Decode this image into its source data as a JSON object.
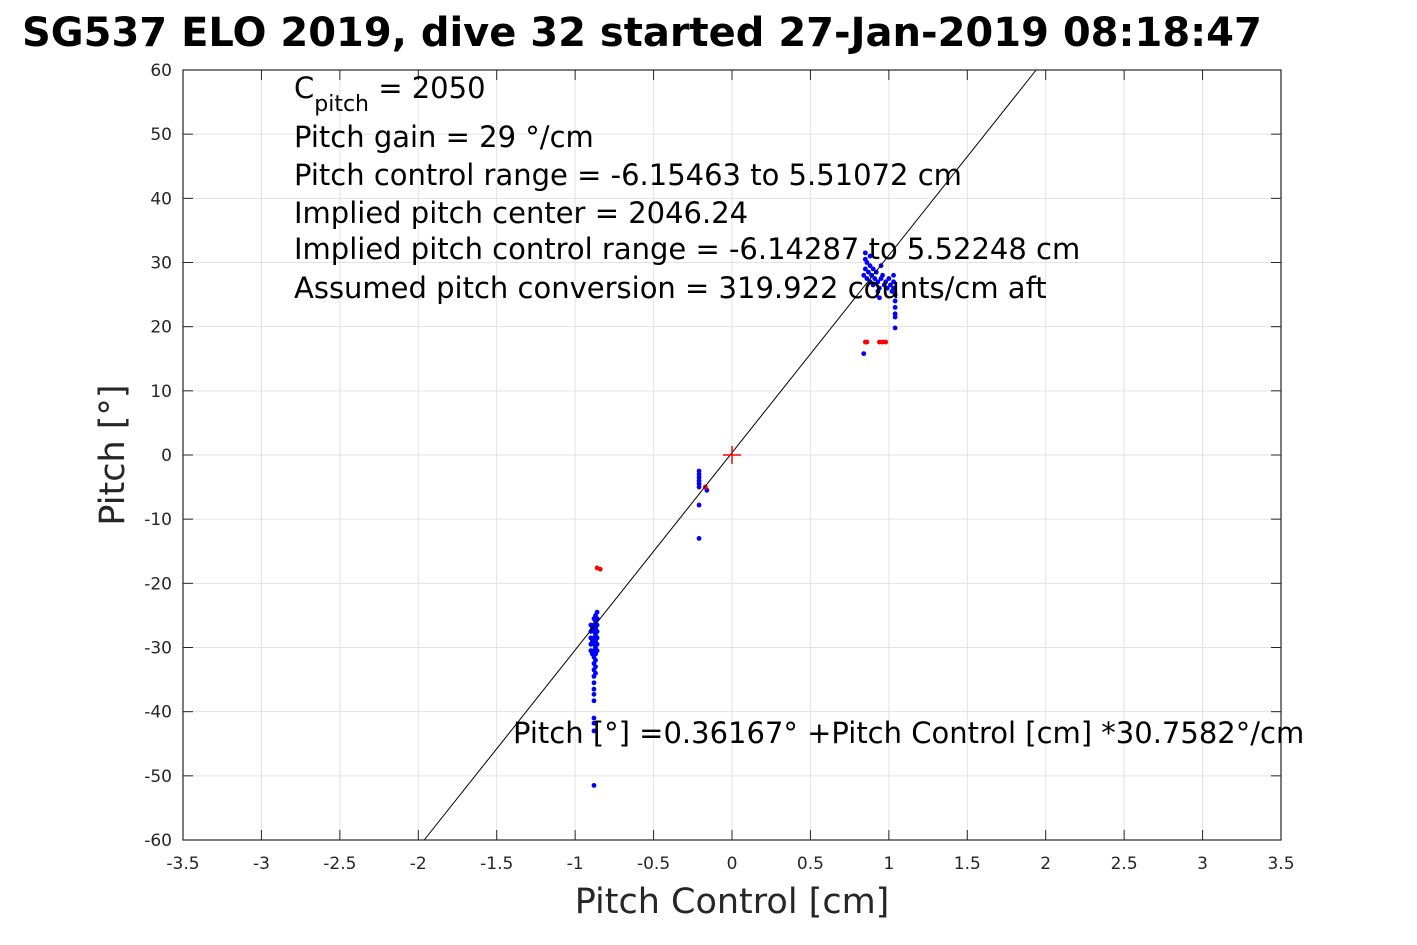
{
  "title": "SG537 ELO 2019, dive 32 started 27-Jan-2019 08:18:47",
  "annotations": {
    "cpitch_symbol": "C",
    "cpitch_subscript": "pitch",
    "cpitch_value": " = 2050",
    "lines": [
      "Pitch gain = 29 °/cm",
      "Pitch control range = -6.15463 to 5.51072 cm",
      "Implied pitch center = 2046.24",
      "Implied pitch control range = -6.14287 to 5.52248 cm",
      "Assumed pitch conversion = 319.922 counts/cm aft"
    ],
    "fit_equation": "Pitch [°] =0.36167° +Pitch Control [cm] *30.7582°/cm"
  },
  "chart_data": {
    "type": "scatter",
    "title": "SG537 ELO 2019, dive 32 started 27-Jan-2019 08:18:47",
    "xlabel": "Pitch Control [cm]",
    "ylabel": "Pitch [°]",
    "xlim": [
      -3.5,
      3.5
    ],
    "ylim": [
      -60,
      60
    ],
    "xticks": [
      -3.5,
      -3,
      -2.5,
      -2,
      -1.5,
      -1,
      -0.5,
      0,
      0.5,
      1,
      1.5,
      2,
      2.5,
      3,
      3.5
    ],
    "yticks": [
      -60,
      -50,
      -40,
      -30,
      -20,
      -10,
      0,
      10,
      20,
      30,
      40,
      50,
      60
    ],
    "xtick_labels": [
      "-3.5",
      "-3",
      "-2.5",
      "-2",
      "-1.5",
      "-1",
      "-0.5",
      "0",
      "0.5",
      "1",
      "1.5",
      "2",
      "2.5",
      "3",
      "3.5"
    ],
    "ytick_labels": [
      "-60",
      "-50",
      "-40",
      "-30",
      "-20",
      "-10",
      "0",
      "10",
      "20",
      "30",
      "40",
      "50",
      "60"
    ],
    "grid": true,
    "colors": {
      "used_points": "#0000ff",
      "excluded_points": "#ff0000",
      "fit_line": "#000000",
      "center_marker": "#ff0000"
    },
    "fit_line": {
      "intercept": 0.36167,
      "slope": 30.7582
    },
    "center_marker": {
      "x": 0,
      "y": 0,
      "marker": "plus"
    },
    "series": [
      {
        "color": "blue",
        "points": [
          [
            -0.9,
            -26.5
          ],
          [
            -0.9,
            -27.5
          ],
          [
            -0.9,
            -28.5
          ],
          [
            -0.9,
            -29.5
          ],
          [
            -0.9,
            -30.5
          ],
          [
            -0.89,
            -27.0
          ],
          [
            -0.89,
            -29.0
          ],
          [
            -0.89,
            -31.0
          ],
          [
            -0.88,
            -25.5
          ],
          [
            -0.88,
            -26.5
          ],
          [
            -0.88,
            -27.5
          ],
          [
            -0.88,
            -28.5
          ],
          [
            -0.88,
            -29.5
          ],
          [
            -0.88,
            -30.5
          ],
          [
            -0.88,
            -31.5
          ],
          [
            -0.88,
            -32.5
          ],
          [
            -0.88,
            -33.5
          ],
          [
            -0.88,
            -34.5
          ],
          [
            -0.88,
            -35.5
          ],
          [
            -0.88,
            -36.5
          ],
          [
            -0.88,
            -37.3
          ],
          [
            -0.88,
            -38.3
          ],
          [
            -0.88,
            -41.0
          ],
          [
            -0.88,
            -41.8
          ],
          [
            -0.88,
            -43.0
          ],
          [
            -0.87,
            -25.0
          ],
          [
            -0.87,
            -26.0
          ],
          [
            -0.87,
            -27.0
          ],
          [
            -0.87,
            -28.0
          ],
          [
            -0.87,
            -29.0
          ],
          [
            -0.87,
            -30.0
          ],
          [
            -0.87,
            -31.0
          ],
          [
            -0.87,
            -32.0
          ],
          [
            -0.87,
            -33.0
          ],
          [
            -0.87,
            -34.0
          ],
          [
            -0.86,
            -24.5
          ],
          [
            -0.86,
            -25.5
          ],
          [
            -0.86,
            -26.5
          ],
          [
            -0.86,
            -27.5
          ],
          [
            -0.86,
            -28.5
          ],
          [
            -0.86,
            -29.5
          ],
          [
            -0.86,
            -30.5
          ],
          [
            -0.88,
            -51.5
          ],
          [
            -0.21,
            -2.5
          ],
          [
            -0.21,
            -3.0
          ],
          [
            -0.21,
            -3.5
          ],
          [
            -0.21,
            -4.0
          ],
          [
            -0.21,
            -4.5
          ],
          [
            -0.21,
            -5.0
          ],
          [
            -0.21,
            -7.8
          ],
          [
            -0.21,
            -13.0
          ],
          [
            -0.16,
            -5.5
          ],
          [
            0.84,
            15.8
          ],
          [
            0.84,
            28.0
          ],
          [
            0.85,
            29.0
          ],
          [
            0.85,
            30.5
          ],
          [
            0.85,
            31.5
          ],
          [
            0.86,
            27.5
          ],
          [
            0.86,
            30.0
          ],
          [
            0.87,
            28.5
          ],
          [
            0.88,
            27.0
          ],
          [
            0.88,
            29.5
          ],
          [
            0.89,
            28.0
          ],
          [
            0.9,
            26.5
          ],
          [
            0.9,
            29.0
          ],
          [
            0.91,
            27.5
          ],
          [
            0.92,
            28.5
          ],
          [
            0.93,
            25.5
          ],
          [
            0.93,
            27.0
          ],
          [
            0.94,
            26.0
          ],
          [
            0.95,
            27.5
          ],
          [
            0.96,
            28.0
          ],
          [
            0.97,
            26.5
          ],
          [
            0.98,
            27.0
          ],
          [
            0.99,
            26.0
          ],
          [
            1.0,
            27.5
          ],
          [
            1.01,
            26.5
          ],
          [
            1.02,
            25.5
          ],
          [
            1.03,
            26.0
          ],
          [
            1.03,
            27.0
          ],
          [
            1.03,
            28.0
          ],
          [
            1.04,
            25.0
          ],
          [
            1.04,
            24.0
          ],
          [
            1.04,
            23.0
          ],
          [
            1.04,
            22.0
          ],
          [
            1.04,
            21.5
          ],
          [
            1.04,
            19.8
          ],
          [
            0.94,
            24.5
          ],
          [
            0.95,
            29.5
          ],
          [
            0.88,
            31.0
          ]
        ]
      },
      {
        "color": "red",
        "points": [
          [
            -0.84,
            -17.8
          ],
          [
            -0.86,
            -17.6
          ],
          [
            -0.17,
            -5.0
          ],
          [
            0.85,
            17.6
          ],
          [
            0.86,
            17.6
          ],
          [
            0.94,
            17.6
          ],
          [
            0.96,
            17.6
          ],
          [
            0.98,
            17.6
          ]
        ]
      }
    ]
  }
}
